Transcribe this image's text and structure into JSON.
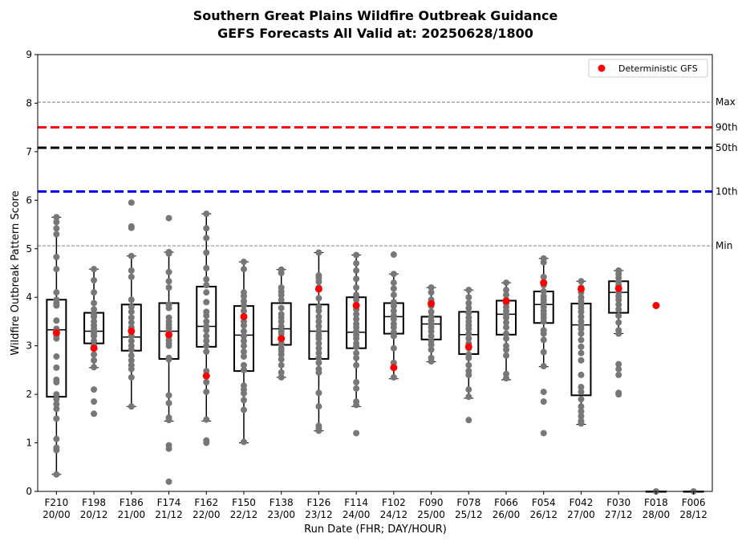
{
  "chart_data": {
    "type": "box",
    "title_line1": "Southern Great Plains Wildfire Outbreak Guidance",
    "title_line2": "GEFS Forecasts All Valid at: 20250628/1800",
    "xlabel": "Run Date (FHR; DAY/HOUR)",
    "ylabel": "Wildfire Outbreak Pattern Score",
    "ylim": [
      0,
      9
    ],
    "yticks": [
      0,
      1,
      2,
      3,
      4,
      5,
      6,
      7,
      8,
      9
    ],
    "legend": {
      "label": "Deterministic GFS",
      "placement": "top-right"
    },
    "reference_lines": [
      {
        "label": "Max",
        "value": 8.02,
        "style": "dashed-thin",
        "color": "#808080"
      },
      {
        "label": "90th",
        "value": 7.5,
        "style": "dashed-thick",
        "color": "#ff0000"
      },
      {
        "label": "50th",
        "value": 7.08,
        "style": "dashed-thick",
        "color": "#000000"
      },
      {
        "label": "10th",
        "value": 6.18,
        "style": "dashed-thick",
        "color": "#0000ff"
      },
      {
        "label": "Min",
        "value": 5.06,
        "style": "dashed-thin",
        "color": "#808080"
      }
    ],
    "colors": {
      "members": "#777777",
      "deterministic": "#ff0000",
      "box": "#000000"
    },
    "runs": [
      {
        "fhr": "F210",
        "dayhour": "20/00",
        "box": {
          "whislo": 0.35,
          "q1": 1.95,
          "med": 3.33,
          "q3": 3.95,
          "whishi": 5.65
        },
        "gfs": 3.27,
        "members": [
          5.65,
          5.55,
          5.42,
          5.3,
          4.83,
          4.58,
          4.1,
          3.95,
          3.88,
          3.83,
          3.52,
          3.35,
          3.3,
          3.22,
          3.15,
          2.78,
          2.55,
          2.3,
          2.25,
          2.0,
          1.9,
          1.8,
          1.7,
          1.5,
          1.08,
          0.9,
          0.85,
          0.35
        ]
      },
      {
        "fhr": "F198",
        "dayhour": "20/12",
        "box": {
          "whislo": 2.55,
          "q1": 3.05,
          "med": 3.3,
          "q3": 3.68,
          "whishi": 4.58
        },
        "gfs": 2.95,
        "members": [
          4.58,
          4.35,
          4.1,
          3.88,
          3.75,
          3.65,
          3.6,
          3.5,
          3.42,
          3.35,
          3.3,
          3.25,
          3.2,
          3.1,
          3.0,
          2.95,
          2.82,
          2.7,
          2.56,
          2.1,
          1.85,
          1.6
        ]
      },
      {
        "fhr": "F186",
        "dayhour": "21/00",
        "box": {
          "whislo": 1.75,
          "q1": 2.9,
          "med": 3.18,
          "q3": 3.85,
          "whishi": 4.85
        },
        "gfs": 3.3,
        "members": [
          5.95,
          5.46,
          5.43,
          4.85,
          4.55,
          4.42,
          3.95,
          3.8,
          3.7,
          3.58,
          3.48,
          3.38,
          3.3,
          3.2,
          3.1,
          3.0,
          2.92,
          2.8,
          2.7,
          2.6,
          2.52,
          2.35,
          1.75
        ]
      },
      {
        "fhr": "F174",
        "dayhour": "21/12",
        "box": {
          "whislo": 1.45,
          "q1": 2.73,
          "med": 3.3,
          "q3": 3.88,
          "whishi": 4.93
        },
        "gfs": 3.23,
        "members": [
          5.63,
          4.93,
          4.9,
          4.52,
          4.33,
          4.2,
          3.85,
          3.78,
          3.58,
          3.5,
          3.43,
          3.37,
          3.3,
          3.2,
          3.12,
          3.05,
          3.0,
          2.75,
          2.72,
          1.98,
          1.82,
          1.52,
          1.47,
          0.95,
          0.88,
          0.2
        ]
      },
      {
        "fhr": "F162",
        "dayhour": "22/00",
        "box": {
          "whislo": 1.45,
          "q1": 2.98,
          "med": 3.4,
          "q3": 4.22,
          "whishi": 5.72
        },
        "gfs": 2.38,
        "members": [
          5.72,
          5.42,
          5.22,
          4.92,
          4.6,
          4.37,
          4.25,
          4.1,
          3.9,
          3.7,
          3.62,
          3.5,
          3.4,
          3.32,
          3.2,
          3.1,
          3.0,
          2.88,
          2.48,
          2.25,
          2.05,
          1.48,
          1.05,
          1.0
        ]
      },
      {
        "fhr": "F150",
        "dayhour": "22/12",
        "box": {
          "whislo": 1.0,
          "q1": 2.48,
          "med": 3.22,
          "q3": 3.82,
          "whishi": 4.73
        },
        "gfs": 3.6,
        "members": [
          4.73,
          4.58,
          4.1,
          4.02,
          3.92,
          3.83,
          3.72,
          3.6,
          3.5,
          3.42,
          3.3,
          3.2,
          3.1,
          3.0,
          2.88,
          2.78,
          2.6,
          2.5,
          2.18,
          2.1,
          2.02,
          1.88,
          1.68,
          1.02
        ]
      },
      {
        "fhr": "F138",
        "dayhour": "23/00",
        "box": {
          "whislo": 2.35,
          "q1": 3.02,
          "med": 3.35,
          "q3": 3.88,
          "whishi": 4.57
        },
        "gfs": 3.15,
        "members": [
          4.57,
          4.5,
          4.2,
          4.12,
          4.05,
          3.95,
          3.78,
          3.65,
          3.58,
          3.5,
          3.4,
          3.3,
          3.25,
          3.15,
          3.05,
          2.95,
          2.9,
          2.82,
          2.72,
          2.6,
          2.45,
          2.35
        ]
      },
      {
        "fhr": "F126",
        "dayhour": "23/12",
        "box": {
          "whislo": 1.25,
          "q1": 2.73,
          "med": 3.3,
          "q3": 3.85,
          "whishi": 4.92
        },
        "gfs": 4.17,
        "members": [
          4.92,
          4.45,
          4.4,
          4.32,
          4.2,
          3.98,
          3.8,
          3.72,
          3.6,
          3.5,
          3.4,
          3.3,
          3.22,
          3.15,
          3.05,
          2.95,
          2.85,
          2.75,
          2.65,
          2.52,
          2.45,
          2.03,
          1.75,
          1.35,
          1.3,
          1.25
        ]
      },
      {
        "fhr": "F114",
        "dayhour": "24/00",
        "box": {
          "whislo": 1.75,
          "q1": 2.95,
          "med": 3.28,
          "q3": 4.0,
          "whishi": 4.87
        },
        "gfs": 3.83,
        "members": [
          4.87,
          4.7,
          4.55,
          4.38,
          4.2,
          4.05,
          3.95,
          3.85,
          3.75,
          3.65,
          3.55,
          3.45,
          3.38,
          3.3,
          3.22,
          3.15,
          3.05,
          2.98,
          2.85,
          2.75,
          2.6,
          2.25,
          2.12,
          1.85,
          1.78,
          1.2
        ]
      },
      {
        "fhr": "F102",
        "dayhour": "24/12",
        "box": {
          "whislo": 2.32,
          "q1": 3.25,
          "med": 3.6,
          "q3": 3.88,
          "whishi": 4.48
        },
        "gfs": 2.55,
        "members": [
          4.88,
          4.48,
          4.3,
          4.18,
          4.05,
          3.9,
          3.82,
          3.72,
          3.62,
          3.55,
          3.45,
          3.38,
          3.28,
          3.2,
          2.95,
          2.65,
          2.55,
          2.35
        ]
      },
      {
        "fhr": "F090",
        "dayhour": "25/00",
        "box": {
          "whislo": 2.67,
          "q1": 3.13,
          "med": 3.45,
          "q3": 3.6,
          "whishi": 4.2
        },
        "gfs": 3.87,
        "members": [
          4.2,
          4.1,
          3.95,
          3.82,
          3.7,
          3.6,
          3.52,
          3.45,
          3.38,
          3.3,
          3.2,
          3.1,
          3.02,
          2.92,
          2.75,
          2.68
        ]
      },
      {
        "fhr": "F078",
        "dayhour": "25/12",
        "box": {
          "whislo": 1.92,
          "q1": 2.83,
          "med": 3.23,
          "q3": 3.7,
          "whishi": 4.15
        },
        "gfs": 2.98,
        "members": [
          4.15,
          4.0,
          3.88,
          3.78,
          3.68,
          3.58,
          3.5,
          3.42,
          3.35,
          3.25,
          3.15,
          3.05,
          2.95,
          2.82,
          2.75,
          2.6,
          2.48,
          2.4,
          2.1,
          1.95,
          1.47
        ]
      },
      {
        "fhr": "F066",
        "dayhour": "26/00",
        "box": {
          "whislo": 2.3,
          "q1": 3.23,
          "med": 3.65,
          "q3": 3.93,
          "whishi": 4.3
        },
        "gfs": 3.92,
        "members": [
          4.3,
          4.15,
          4.05,
          3.95,
          3.88,
          3.8,
          3.72,
          3.65,
          3.58,
          3.48,
          3.38,
          3.25,
          3.15,
          3.0,
          2.92,
          2.8,
          2.42,
          2.33
        ]
      },
      {
        "fhr": "F054",
        "dayhour": "26/12",
        "box": {
          "whislo": 2.57,
          "q1": 3.47,
          "med": 3.85,
          "q3": 4.12,
          "whishi": 4.8
        },
        "gfs": 4.3,
        "members": [
          4.8,
          4.72,
          4.42,
          4.25,
          4.12,
          4.02,
          3.95,
          3.88,
          3.8,
          3.72,
          3.65,
          3.58,
          3.5,
          3.32,
          3.25,
          3.12,
          2.87,
          2.58,
          2.05,
          1.85,
          1.2
        ]
      },
      {
        "fhr": "F042",
        "dayhour": "27/00",
        "box": {
          "whislo": 1.38,
          "q1": 1.98,
          "med": 3.43,
          "q3": 3.87,
          "whishi": 4.33
        },
        "gfs": 4.17,
        "members": [
          4.33,
          4.2,
          4.1,
          4.0,
          3.92,
          3.85,
          3.78,
          3.7,
          3.6,
          3.5,
          3.42,
          3.35,
          3.25,
          3.12,
          2.98,
          2.85,
          2.7,
          2.4,
          2.15,
          2.05,
          1.9,
          1.75,
          1.65,
          1.55,
          1.45,
          1.4
        ]
      },
      {
        "fhr": "F030",
        "dayhour": "27/12",
        "box": {
          "whislo": 3.25,
          "q1": 3.68,
          "med": 4.1,
          "q3": 4.33,
          "whishi": 4.55
        },
        "gfs": 4.18,
        "members": [
          4.55,
          4.48,
          4.4,
          4.32,
          4.25,
          4.18,
          4.1,
          4.02,
          3.95,
          3.85,
          3.75,
          3.62,
          3.48,
          3.32,
          3.25,
          2.62,
          2.52,
          2.4,
          2.03,
          2.0
        ]
      },
      {
        "fhr": "F018",
        "dayhour": "28/00",
        "box": {
          "whislo": 0,
          "q1": 0,
          "med": 0,
          "q3": 0,
          "whishi": 0
        },
        "gfs": 3.83,
        "members": [
          0.0
        ]
      },
      {
        "fhr": "F006",
        "dayhour": "28/12",
        "box": {
          "whislo": 0,
          "q1": 0,
          "med": 0,
          "q3": 0,
          "whishi": 0
        },
        "gfs": null,
        "members": [
          0.0
        ]
      }
    ]
  }
}
